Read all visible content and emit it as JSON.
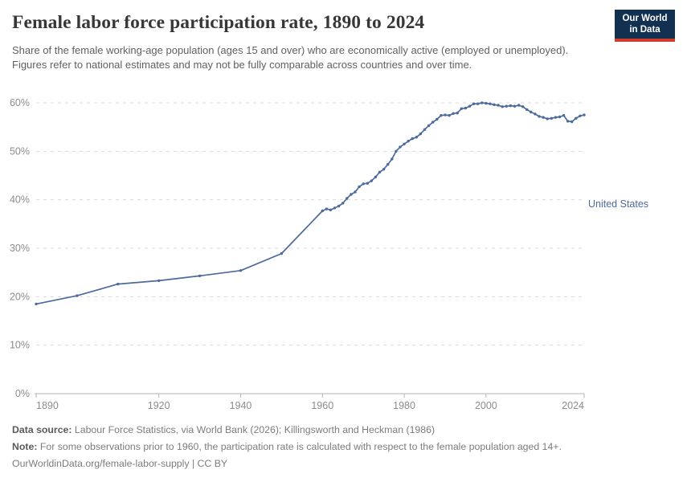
{
  "header": {
    "title": "Female labor force participation rate, 1890 to 2024",
    "subtitle": "Share of the female working-age population (ages 15 and over) who are economically active (employed or unemployed). Figures refer to national estimates and may not be fully comparable across countries and over time.",
    "logo": {
      "line1": "Our World",
      "line2": "in Data"
    }
  },
  "chart_data": {
    "type": "line",
    "title": "Female labor force participation rate, 1890 to 2024",
    "xlabel": "",
    "ylabel": "",
    "xlim": [
      1890,
      2024
    ],
    "ylim": [
      0,
      60
    ],
    "grid": "horizontal-dashed",
    "legend_position": "end-of-line",
    "xticks": [
      {
        "value": 1890,
        "label": "1890"
      },
      {
        "value": 1920,
        "label": "1920"
      },
      {
        "value": 1940,
        "label": "1940"
      },
      {
        "value": 1960,
        "label": "1960"
      },
      {
        "value": 1980,
        "label": "1980"
      },
      {
        "value": 2000,
        "label": "2000"
      },
      {
        "value": 2024,
        "label": "2024"
      }
    ],
    "yticks": [
      {
        "value": 0,
        "label": "0%"
      },
      {
        "value": 10,
        "label": "10%"
      },
      {
        "value": 20,
        "label": "20%"
      },
      {
        "value": 30,
        "label": "30%"
      },
      {
        "value": 40,
        "label": "40%"
      },
      {
        "value": 50,
        "label": "50%"
      },
      {
        "value": 60,
        "label": "60%"
      }
    ],
    "series": [
      {
        "name": "United States",
        "color": "#4c6a9c",
        "points": [
          [
            1890,
            18.5
          ],
          [
            1900,
            20.2
          ],
          [
            1910,
            22.6
          ],
          [
            1920,
            23.3
          ],
          [
            1930,
            24.3
          ],
          [
            1940,
            25.4
          ],
          [
            1950,
            28.9
          ],
          [
            1960,
            37.7
          ],
          [
            1961,
            38.1
          ],
          [
            1962,
            37.9
          ],
          [
            1963,
            38.3
          ],
          [
            1964,
            38.7
          ],
          [
            1965,
            39.3
          ],
          [
            1966,
            40.3
          ],
          [
            1967,
            41.1
          ],
          [
            1968,
            41.6
          ],
          [
            1969,
            42.7
          ],
          [
            1970,
            43.3
          ],
          [
            1971,
            43.4
          ],
          [
            1972,
            43.9
          ],
          [
            1973,
            44.7
          ],
          [
            1974,
            45.7
          ],
          [
            1975,
            46.3
          ],
          [
            1976,
            47.3
          ],
          [
            1977,
            48.4
          ],
          [
            1978,
            50.0
          ],
          [
            1979,
            50.9
          ],
          [
            1980,
            51.5
          ],
          [
            1981,
            52.1
          ],
          [
            1982,
            52.6
          ],
          [
            1983,
            52.9
          ],
          [
            1984,
            53.6
          ],
          [
            1985,
            54.5
          ],
          [
            1986,
            55.3
          ],
          [
            1987,
            56.0
          ],
          [
            1988,
            56.6
          ],
          [
            1989,
            57.4
          ],
          [
            1990,
            57.5
          ],
          [
            1991,
            57.4
          ],
          [
            1992,
            57.8
          ],
          [
            1993,
            57.9
          ],
          [
            1994,
            58.8
          ],
          [
            1995,
            58.9
          ],
          [
            1996,
            59.3
          ],
          [
            1997,
            59.8
          ],
          [
            1998,
            59.8
          ],
          [
            1999,
            60.0
          ],
          [
            2000,
            59.9
          ],
          [
            2001,
            59.8
          ],
          [
            2002,
            59.6
          ],
          [
            2003,
            59.5
          ],
          [
            2004,
            59.2
          ],
          [
            2005,
            59.3
          ],
          [
            2006,
            59.4
          ],
          [
            2007,
            59.3
          ],
          [
            2008,
            59.5
          ],
          [
            2009,
            59.2
          ],
          [
            2010,
            58.6
          ],
          [
            2011,
            58.1
          ],
          [
            2012,
            57.7
          ],
          [
            2013,
            57.2
          ],
          [
            2014,
            57.0
          ],
          [
            2015,
            56.7
          ],
          [
            2016,
            56.8
          ],
          [
            2017,
            57.0
          ],
          [
            2018,
            57.1
          ],
          [
            2019,
            57.4
          ],
          [
            2020,
            56.2
          ],
          [
            2021,
            56.1
          ],
          [
            2022,
            56.8
          ],
          [
            2023,
            57.3
          ],
          [
            2024,
            57.5
          ]
        ]
      }
    ],
    "colors": {
      "line": "#4c6a9c",
      "gridline": "#dadada",
      "axis": "#b3b3b3",
      "tick_label": "#8c8c8c"
    }
  },
  "footer": {
    "data_source_label": "Data source:",
    "data_source": " Labour Force Statistics, via World Bank (2026); Killingsworth and Heckman (1986)",
    "note_label": "Note:",
    "note": " For some observations prior to 1960, the participation rate is calculated with respect to the female population aged 14+.",
    "link": "OurWorldinData.org/female-labor-supply | CC BY"
  }
}
